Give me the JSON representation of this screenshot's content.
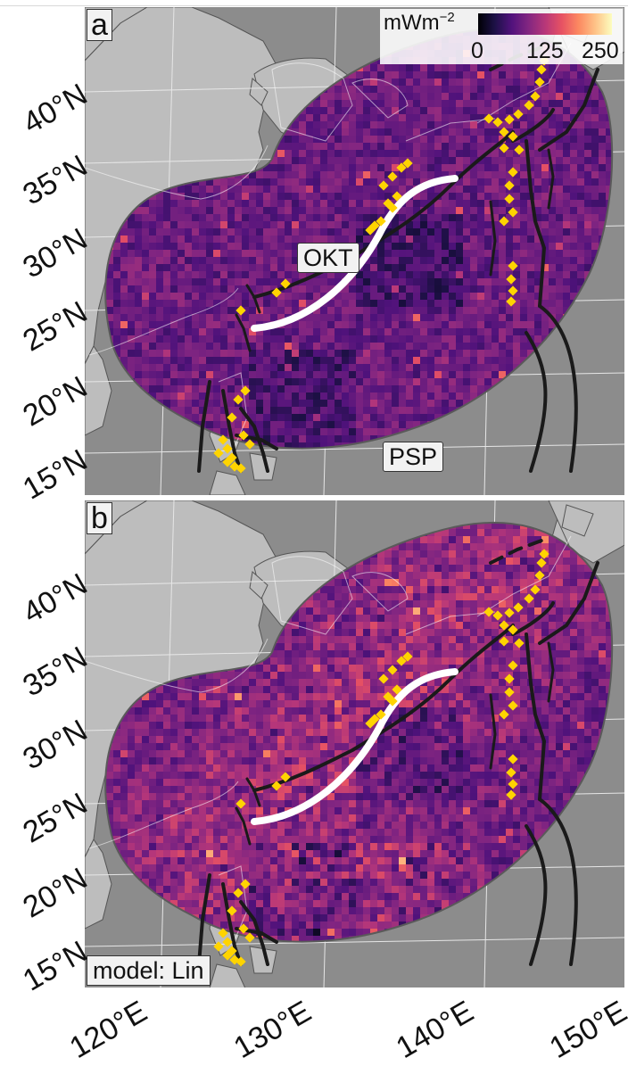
{
  "figure": {
    "panels": [
      {
        "label": "a",
        "tags": [
          "OKT",
          "PSP"
        ]
      },
      {
        "label": "b",
        "tags": [
          "model: Lin"
        ]
      }
    ],
    "legend": {
      "unit": "mWm",
      "unit_exponent": "−2",
      "colormap": "magma",
      "ticks": [
        "0",
        "125",
        "250"
      ]
    },
    "lat_labels": [
      "40°N",
      "35°N",
      "30°N",
      "25°N",
      "20°N",
      "15°N"
    ],
    "lon_labels": [
      "120°E",
      "130°E",
      "140°E",
      "150°E"
    ],
    "colors": {
      "ocean": "#8c8c8c",
      "land": "#bdbdbd",
      "trench": "#1a1a1a",
      "stations": "#ffd400",
      "ryukyu_trench": "#ffffff"
    }
  }
}
